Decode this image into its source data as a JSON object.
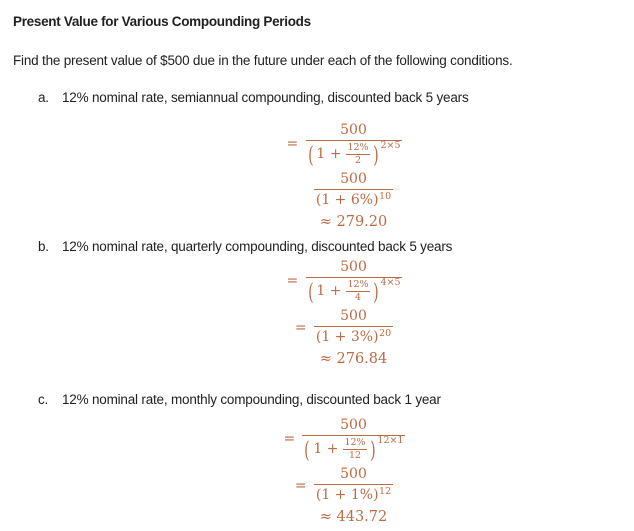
{
  "document": {
    "title": "Present Value for Various Compounding Periods",
    "intro": "Find the present value of $500 due in the future under each of the following conditions."
  },
  "colors": {
    "math_accent": "#BD6B44",
    "body_text": "#1F1F1F",
    "background": "#FFFFFF"
  },
  "problems": [
    {
      "letter": "a.",
      "description": "12% nominal rate, semiannual compounding, discounted back 5 years",
      "math": {
        "step1": {
          "equals": "=",
          "numerator": "500",
          "paren_open": "(",
          "den_prefix": "1 +",
          "nested_numerator": "12%",
          "nested_denominator": "2",
          "paren_close": ")",
          "exponent": "2×5"
        },
        "step2": {
          "equals": "",
          "numerator": "500",
          "denominator": "(1 + 6%)",
          "exponent": "10"
        },
        "result": "≈ 279.20"
      }
    },
    {
      "letter": "b.",
      "description": "12% nominal rate, quarterly compounding, discounted back 5 years",
      "math": {
        "step1": {
          "equals": "=",
          "numerator": "500",
          "paren_open": "(",
          "den_prefix": "1 +",
          "nested_numerator": "12%",
          "nested_denominator": "4",
          "paren_close": ")",
          "exponent": "4×5"
        },
        "step2": {
          "equals": "=",
          "numerator": "500",
          "denominator": "(1 + 3%)",
          "exponent": "20"
        },
        "result": "≈ 276.84"
      }
    },
    {
      "letter": "c.",
      "description": "12% nominal rate, monthly compounding, discounted back 1 year",
      "math": {
        "step1": {
          "equals": "=",
          "numerator": "500",
          "paren_open": "(",
          "den_prefix": "1 +",
          "nested_numerator": "12%",
          "nested_denominator": "12",
          "paren_close": ")",
          "exponent": "12×1"
        },
        "step2": {
          "equals": "=",
          "numerator": "500",
          "denominator": "(1 + 1%)",
          "exponent": "12"
        },
        "result": "≈ 443.72"
      }
    }
  ]
}
